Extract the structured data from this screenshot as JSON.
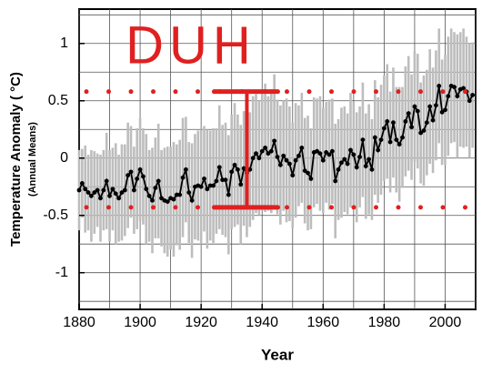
{
  "chart_data": {
    "type": "line",
    "ylabel": "Temperature Anomaly ( °C)",
    "ylabel_sub": "(Annual Means)",
    "xlabel": "Year",
    "annotation": "DUH",
    "xlim": [
      1880,
      2010
    ],
    "ylim": [
      -1.32,
      1.3
    ],
    "xticks": [
      1880,
      1900,
      1920,
      1940,
      1960,
      1980,
      2000
    ],
    "yticks": [
      -1,
      -0.5,
      0,
      0.5,
      1
    ],
    "xgrid": [
      1880,
      1890,
      1900,
      1910,
      1920,
      1930,
      1940,
      1950,
      1960,
      1970,
      1980,
      1990,
      2000,
      2010
    ],
    "ygrid": [
      -1.25,
      -1,
      -0.75,
      -0.5,
      -0.25,
      0,
      0.25,
      0.5,
      0.75,
      1,
      1.25
    ],
    "reference_lines": [
      0.58,
      -0.43
    ],
    "reference_color": "#e02020",
    "bracket_x": 1935,
    "x": [
      1880,
      1881,
      1882,
      1883,
      1884,
      1885,
      1886,
      1887,
      1888,
      1889,
      1890,
      1891,
      1892,
      1893,
      1894,
      1895,
      1896,
      1897,
      1898,
      1899,
      1900,
      1901,
      1902,
      1903,
      1904,
      1905,
      1906,
      1907,
      1908,
      1909,
      1910,
      1911,
      1912,
      1913,
      1914,
      1915,
      1916,
      1917,
      1918,
      1919,
      1920,
      1921,
      1922,
      1923,
      1924,
      1925,
      1926,
      1927,
      1928,
      1929,
      1930,
      1931,
      1932,
      1933,
      1934,
      1935,
      1936,
      1937,
      1938,
      1939,
      1940,
      1941,
      1942,
      1943,
      1944,
      1945,
      1946,
      1947,
      1948,
      1949,
      1950,
      1951,
      1952,
      1953,
      1954,
      1955,
      1956,
      1957,
      1958,
      1959,
      1960,
      1961,
      1962,
      1963,
      1964,
      1965,
      1966,
      1967,
      1968,
      1969,
      1970,
      1971,
      1972,
      1973,
      1974,
      1975,
      1976,
      1977,
      1978,
      1979,
      1980,
      1981,
      1982,
      1983,
      1984,
      1985,
      1986,
      1987,
      1988,
      1989,
      1990,
      1991,
      1992,
      1993,
      1994,
      1995,
      1996,
      1997,
      1998,
      1999,
      2000,
      2001,
      2002,
      2003,
      2004,
      2005,
      2006,
      2007,
      2008,
      2009
    ],
    "series": [
      {
        "color": "#000000",
        "error_color": "#bdbdbd",
        "values": [
          -0.28,
          -0.22,
          -0.27,
          -0.3,
          -0.33,
          -0.3,
          -0.28,
          -0.35,
          -0.28,
          -0.2,
          -0.33,
          -0.27,
          -0.31,
          -0.35,
          -0.3,
          -0.28,
          -0.15,
          -0.12,
          -0.28,
          -0.18,
          -0.1,
          -0.16,
          -0.27,
          -0.33,
          -0.37,
          -0.26,
          -0.2,
          -0.35,
          -0.37,
          -0.38,
          -0.35,
          -0.36,
          -0.32,
          -0.32,
          -0.17,
          -0.1,
          -0.3,
          -0.37,
          -0.25,
          -0.24,
          -0.25,
          -0.18,
          -0.27,
          -0.24,
          -0.24,
          -0.2,
          -0.08,
          -0.19,
          -0.19,
          -0.32,
          -0.12,
          -0.06,
          -0.1,
          -0.23,
          -0.09,
          -0.13,
          -0.1,
          0.0,
          0.04,
          0.0,
          0.06,
          0.09,
          0.04,
          0.06,
          0.15,
          0.01,
          -0.06,
          0.02,
          -0.02,
          -0.05,
          -0.15,
          -0.02,
          0.02,
          0.09,
          -0.11,
          -0.13,
          -0.18,
          0.05,
          0.06,
          0.04,
          -0.02,
          0.05,
          0.03,
          0.06,
          -0.2,
          -0.1,
          -0.04,
          -0.01,
          -0.05,
          0.07,
          0.03,
          -0.08,
          0.01,
          0.16,
          -0.07,
          -0.01,
          -0.1,
          0.18,
          0.07,
          0.16,
          0.26,
          0.32,
          0.14,
          0.31,
          0.16,
          0.12,
          0.18,
          0.32,
          0.39,
          0.27,
          0.45,
          0.41,
          0.22,
          0.24,
          0.31,
          0.45,
          0.33,
          0.46,
          0.63,
          0.4,
          0.42,
          0.54,
          0.63,
          0.62,
          0.54,
          0.6,
          0.61,
          0.58,
          0.5,
          0.55
        ],
        "errors": [
          0.35,
          0.3,
          0.38,
          0.33,
          0.4,
          0.36,
          0.32,
          0.38,
          0.35,
          0.42,
          0.4,
          0.36,
          0.44,
          0.38,
          0.42,
          0.4,
          0.46,
          0.4,
          0.38,
          0.44,
          0.45,
          0.42,
          0.48,
          0.4,
          0.46,
          0.44,
          0.5,
          0.42,
          0.46,
          0.48,
          0.45,
          0.5,
          0.44,
          0.48,
          0.52,
          0.46,
          0.44,
          0.5,
          0.46,
          0.48,
          0.5,
          0.46,
          0.52,
          0.48,
          0.5,
          0.46,
          0.54,
          0.48,
          0.5,
          0.52,
          0.5,
          0.54,
          0.48,
          0.52,
          0.5,
          0.56,
          0.5,
          0.54,
          0.52,
          0.5,
          0.52,
          0.56,
          0.5,
          0.54,
          0.58,
          0.5,
          0.52,
          0.48,
          0.54,
          0.5,
          0.46,
          0.5,
          0.44,
          0.48,
          0.46,
          0.5,
          0.44,
          0.48,
          0.46,
          0.5,
          0.46,
          0.44,
          0.48,
          0.46,
          0.5,
          0.44,
          0.48,
          0.46,
          0.44,
          0.5,
          0.46,
          0.48,
          0.44,
          0.5,
          0.46,
          0.48,
          0.44,
          0.5,
          0.46,
          0.48,
          0.46,
          0.5,
          0.44,
          0.48,
          0.46,
          0.5,
          0.44,
          0.48,
          0.5,
          0.46,
          0.48,
          0.5,
          0.44,
          0.48,
          0.46,
          0.5,
          0.46,
          0.48,
          0.5,
          0.46,
          0.48,
          0.52,
          0.5,
          0.48,
          0.54,
          0.5,
          0.52,
          0.48,
          0.5,
          0.46
        ]
      }
    ]
  }
}
